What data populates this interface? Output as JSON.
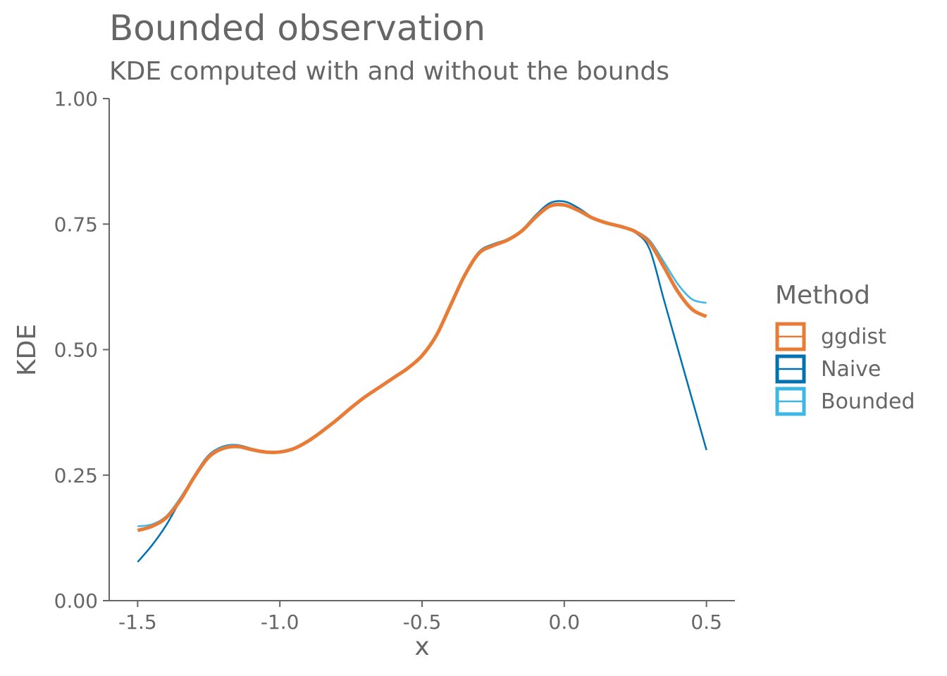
{
  "chart_data": {
    "type": "line",
    "title": "Bounded observation",
    "subtitle": "KDE computed with and without the bounds",
    "xlabel": "x",
    "ylabel": "KDE",
    "xlim": [
      -1.6,
      0.6
    ],
    "ylim": [
      0,
      1
    ],
    "x_ticks": [
      "-1.5",
      "-1.0",
      "-0.5",
      "0.0",
      "0.5"
    ],
    "y_ticks": [
      "0.00",
      "0.25",
      "0.50",
      "0.75",
      "1.00"
    ],
    "grid": false,
    "legend": {
      "title": "Method",
      "position": "right",
      "items": [
        {
          "label": "ggdist",
          "color": "#E87B36"
        },
        {
          "label": "Naive",
          "color": "#0072B2"
        },
        {
          "label": "Bounded",
          "color": "#3DB7E4"
        }
      ]
    },
    "series": [
      {
        "name": "Naive",
        "color": "#0072B2",
        "x": [
          -1.5,
          -1.45,
          -1.4,
          -1.35,
          -1.3,
          -1.25,
          -1.2,
          -1.15,
          -1.1,
          -1.05,
          -1.0,
          -0.95,
          -0.9,
          -0.85,
          -0.8,
          -0.75,
          -0.7,
          -0.65,
          -0.6,
          -0.55,
          -0.5,
          -0.45,
          -0.4,
          -0.35,
          -0.3,
          -0.25,
          -0.2,
          -0.15,
          -0.1,
          -0.05,
          0.0,
          0.05,
          0.1,
          0.15,
          0.2,
          0.25,
          0.3,
          0.35,
          0.4,
          0.45,
          0.5
        ],
        "y": [
          0.077,
          0.11,
          0.15,
          0.2,
          0.25,
          0.29,
          0.307,
          0.31,
          0.303,
          0.296,
          0.295,
          0.302,
          0.318,
          0.338,
          0.36,
          0.384,
          0.406,
          0.426,
          0.445,
          0.463,
          0.487,
          0.528,
          0.59,
          0.65,
          0.695,
          0.71,
          0.72,
          0.738,
          0.768,
          0.792,
          0.795,
          0.782,
          0.763,
          0.752,
          0.744,
          0.733,
          0.7,
          0.6,
          0.5,
          0.4,
          0.3
        ]
      },
      {
        "name": "Bounded",
        "color": "#3DB7E4",
        "x": [
          -1.5,
          -1.45,
          -1.4,
          -1.35,
          -1.3,
          -1.25,
          -1.2,
          -1.15,
          -1.1,
          -1.05,
          -1.0,
          -0.95,
          -0.9,
          -0.85,
          -0.8,
          -0.75,
          -0.7,
          -0.65,
          -0.6,
          -0.55,
          -0.5,
          -0.45,
          -0.4,
          -0.35,
          -0.3,
          -0.25,
          -0.2,
          -0.15,
          -0.1,
          -0.05,
          0.0,
          0.05,
          0.1,
          0.15,
          0.2,
          0.25,
          0.3,
          0.35,
          0.4,
          0.45,
          0.5
        ],
        "y": [
          0.148,
          0.152,
          0.168,
          0.205,
          0.25,
          0.289,
          0.306,
          0.309,
          0.302,
          0.296,
          0.295,
          0.302,
          0.318,
          0.338,
          0.36,
          0.384,
          0.406,
          0.426,
          0.445,
          0.464,
          0.489,
          0.53,
          0.59,
          0.65,
          0.693,
          0.708,
          0.719,
          0.737,
          0.765,
          0.788,
          0.79,
          0.778,
          0.762,
          0.752,
          0.745,
          0.736,
          0.718,
          0.675,
          0.63,
          0.6,
          0.593
        ]
      },
      {
        "name": "ggdist",
        "color": "#E87B36",
        "x": [
          -1.5,
          -1.45,
          -1.4,
          -1.35,
          -1.3,
          -1.25,
          -1.2,
          -1.15,
          -1.1,
          -1.05,
          -1.0,
          -0.95,
          -0.9,
          -0.85,
          -0.8,
          -0.75,
          -0.7,
          -0.65,
          -0.6,
          -0.55,
          -0.5,
          -0.45,
          -0.4,
          -0.35,
          -0.3,
          -0.25,
          -0.2,
          -0.15,
          -0.1,
          -0.05,
          0.0,
          0.05,
          0.1,
          0.15,
          0.2,
          0.25,
          0.3,
          0.35,
          0.4,
          0.45,
          0.5
        ],
        "y": [
          0.14,
          0.148,
          0.165,
          0.2,
          0.247,
          0.286,
          0.303,
          0.307,
          0.301,
          0.296,
          0.296,
          0.303,
          0.318,
          0.338,
          0.36,
          0.384,
          0.406,
          0.425,
          0.444,
          0.463,
          0.488,
          0.528,
          0.588,
          0.648,
          0.692,
          0.707,
          0.718,
          0.736,
          0.764,
          0.786,
          0.788,
          0.777,
          0.762,
          0.752,
          0.745,
          0.735,
          0.713,
          0.665,
          0.615,
          0.58,
          0.566
        ]
      }
    ]
  }
}
